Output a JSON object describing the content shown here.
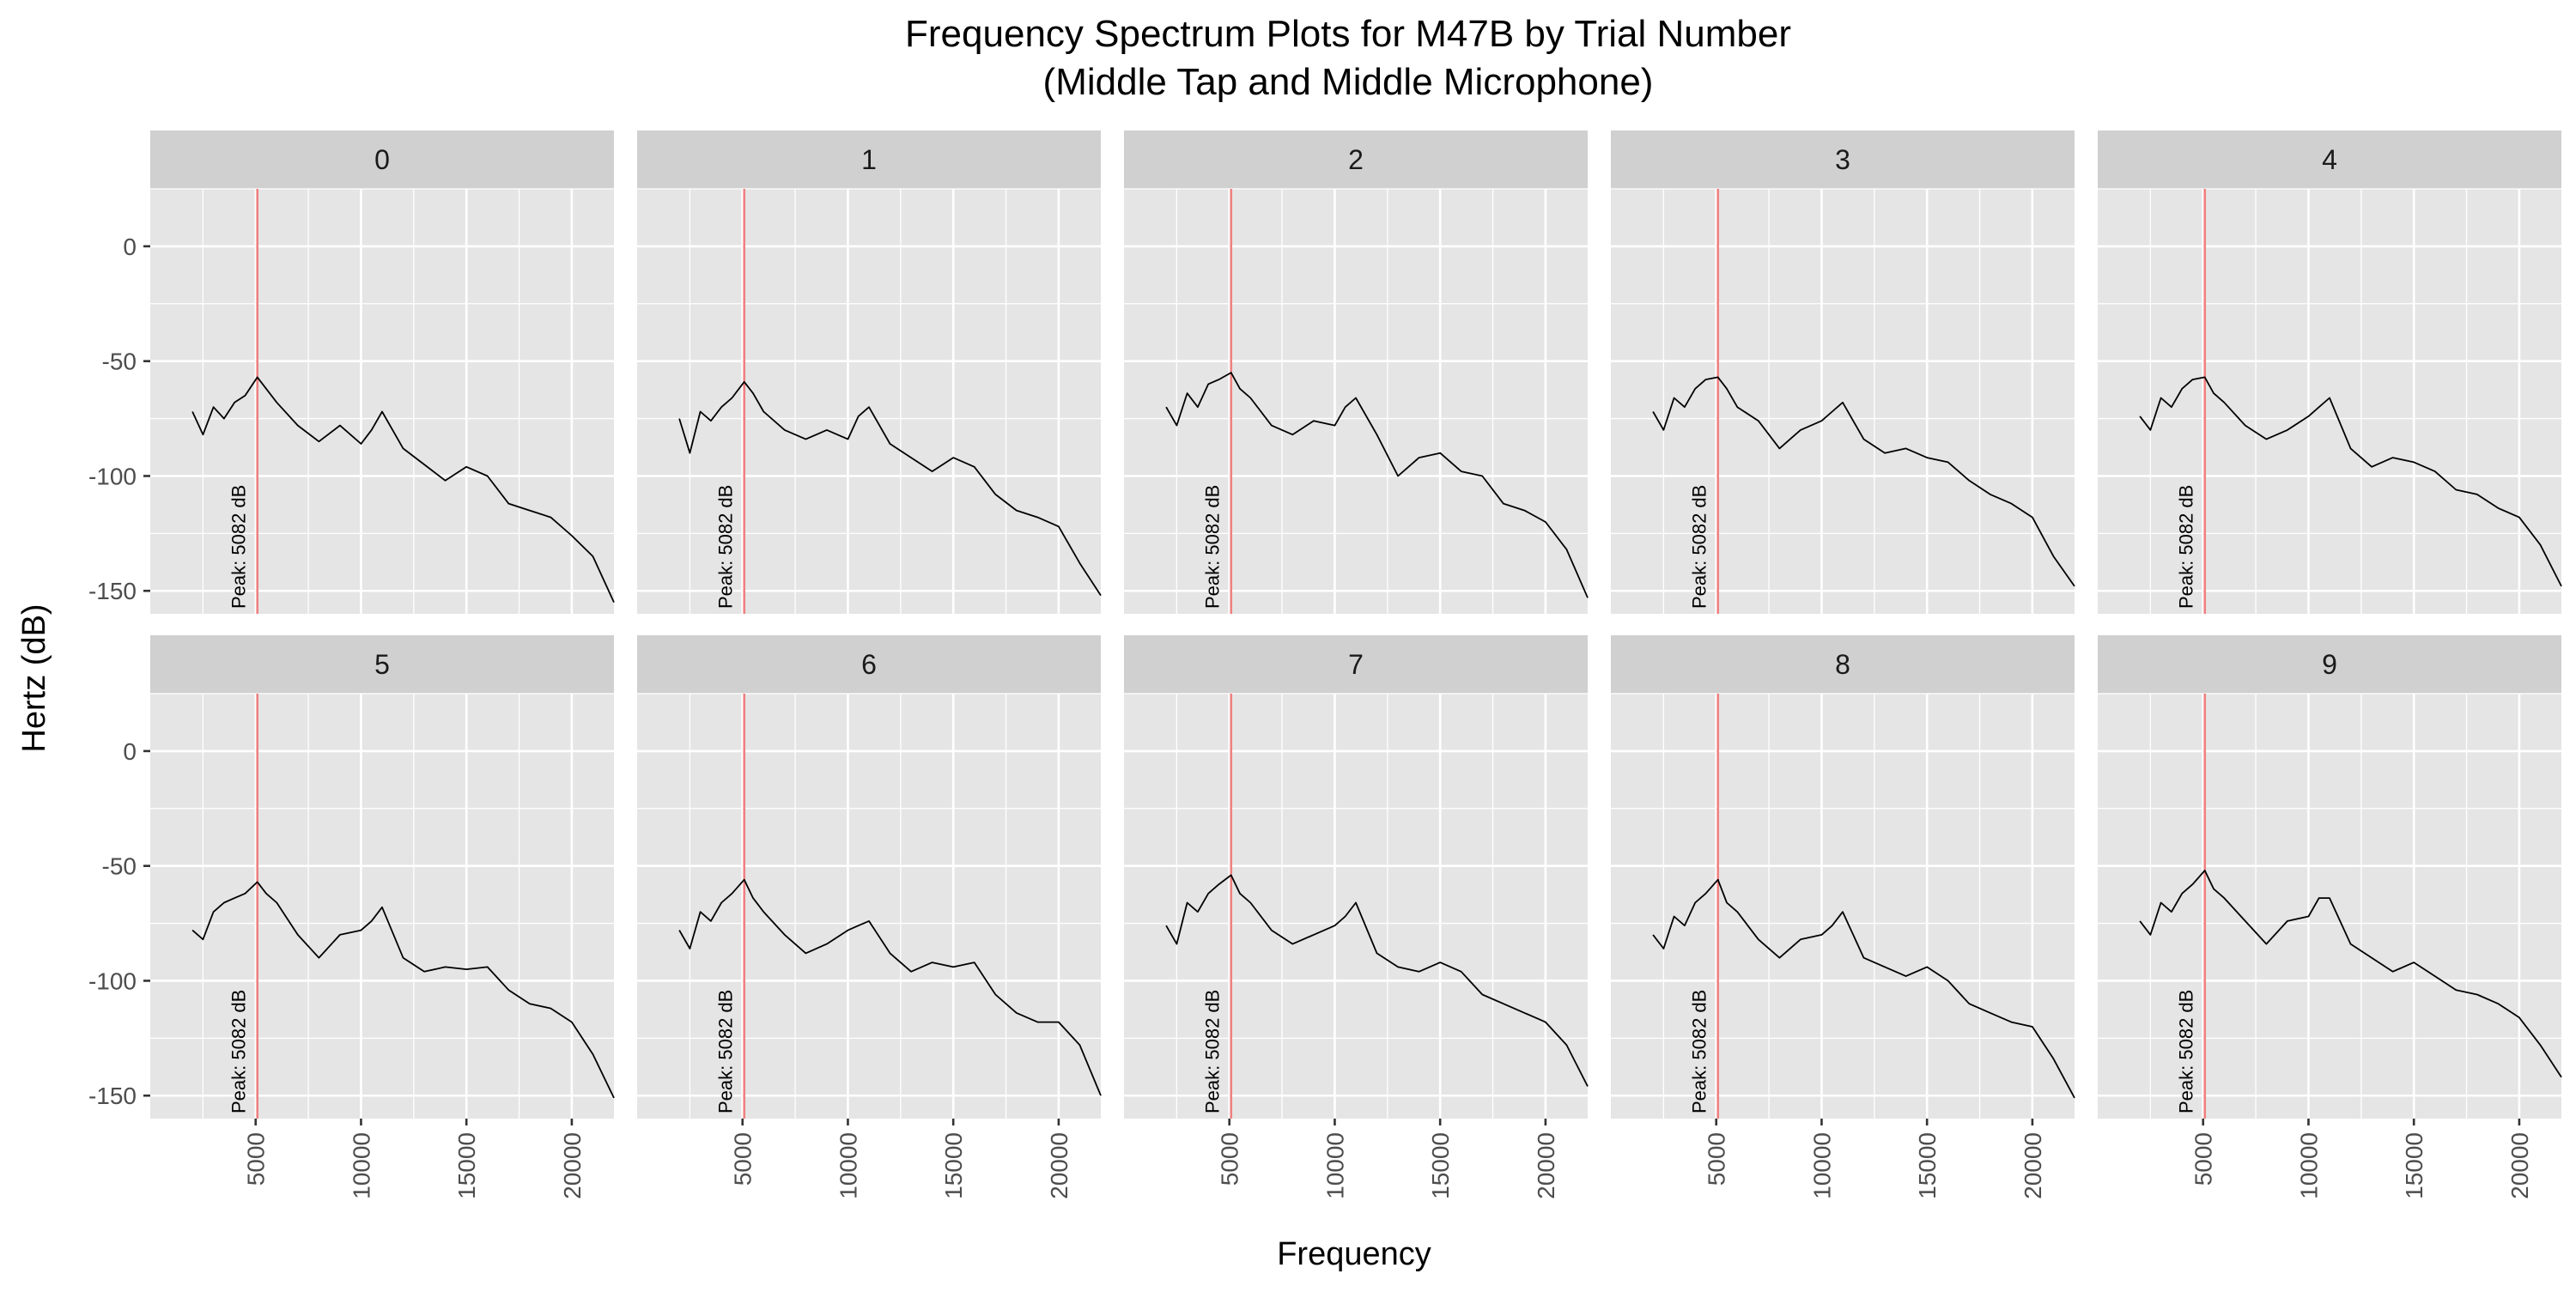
{
  "chart_data": {
    "type": "line",
    "title_line1": "Frequency Spectrum Plots for  M47B  by Trial Number",
    "title_line2": "(Middle Tap and Middle Microphone)",
    "xlabel": "Frequency",
    "ylabel": "Hertz (dB)",
    "xlim": [
      0,
      22000
    ],
    "ylim": [
      -160,
      25
    ],
    "x_ticks": [
      5000,
      10000,
      15000,
      20000
    ],
    "x_tick_labels": [
      "5000",
      "10000",
      "15000",
      "20000"
    ],
    "y_ticks": [
      0,
      -50,
      -100,
      -150
    ],
    "y_tick_labels": [
      "0",
      "-50",
      "-100",
      "-150"
    ],
    "grid": true,
    "legend": "none",
    "peak_frequency": 5082,
    "peak_label": "Peak:  5082 dB",
    "colors": {
      "panel_background": "#e5e5e5",
      "strip_background": "#d0d0d0",
      "grid": "#ffffff",
      "line": "#000000",
      "peak_line": "#f08080"
    },
    "panels": [
      {
        "label": "0",
        "x": [
          2000,
          2500,
          3000,
          3500,
          4000,
          4500,
          5082,
          5500,
          6000,
          7000,
          8000,
          9000,
          10000,
          10500,
          11000,
          12000,
          13000,
          14000,
          15000,
          16000,
          17000,
          18000,
          19000,
          20000,
          21000,
          22000
        ],
        "values": [
          -72,
          -82,
          -70,
          -75,
          -68,
          -65,
          -57,
          -62,
          -68,
          -78,
          -85,
          -78,
          -86,
          -80,
          -72,
          -88,
          -95,
          -102,
          -96,
          -100,
          -112,
          -115,
          -118,
          -126,
          -135,
          -155
        ]
      },
      {
        "label": "1",
        "x": [
          2000,
          2500,
          3000,
          3500,
          4000,
          4500,
          5082,
          5500,
          6000,
          7000,
          8000,
          9000,
          10000,
          10500,
          11000,
          12000,
          13000,
          14000,
          15000,
          16000,
          17000,
          18000,
          19000,
          20000,
          21000,
          22000
        ],
        "values": [
          -75,
          -90,
          -72,
          -76,
          -70,
          -66,
          -59,
          -64,
          -72,
          -80,
          -84,
          -80,
          -84,
          -74,
          -70,
          -86,
          -92,
          -98,
          -92,
          -96,
          -108,
          -115,
          -118,
          -122,
          -138,
          -152
        ]
      },
      {
        "label": "2",
        "x": [
          2000,
          2500,
          3000,
          3500,
          4000,
          4500,
          5082,
          5500,
          6000,
          7000,
          8000,
          9000,
          10000,
          10500,
          11000,
          12000,
          13000,
          14000,
          15000,
          16000,
          17000,
          18000,
          19000,
          20000,
          21000,
          22000
        ],
        "values": [
          -70,
          -78,
          -64,
          -70,
          -60,
          -58,
          -55,
          -62,
          -66,
          -78,
          -82,
          -76,
          -78,
          -70,
          -66,
          -82,
          -100,
          -92,
          -90,
          -98,
          -100,
          -112,
          -115,
          -120,
          -132,
          -153
        ]
      },
      {
        "label": "3",
        "x": [
          2000,
          2500,
          3000,
          3500,
          4000,
          4500,
          5082,
          5500,
          6000,
          7000,
          8000,
          9000,
          10000,
          10500,
          11000,
          12000,
          13000,
          14000,
          15000,
          16000,
          17000,
          18000,
          19000,
          20000,
          21000,
          22000
        ],
        "values": [
          -72,
          -80,
          -66,
          -70,
          -62,
          -58,
          -57,
          -62,
          -70,
          -76,
          -88,
          -80,
          -76,
          -72,
          -68,
          -84,
          -90,
          -88,
          -92,
          -94,
          -102,
          -108,
          -112,
          -118,
          -135,
          -148
        ]
      },
      {
        "label": "4",
        "x": [
          2000,
          2500,
          3000,
          3500,
          4000,
          4500,
          5082,
          5500,
          6000,
          7000,
          8000,
          9000,
          10000,
          10500,
          11000,
          12000,
          13000,
          14000,
          15000,
          16000,
          17000,
          18000,
          19000,
          20000,
          21000,
          22000
        ],
        "values": [
          -74,
          -80,
          -66,
          -70,
          -62,
          -58,
          -57,
          -64,
          -68,
          -78,
          -84,
          -80,
          -74,
          -70,
          -66,
          -88,
          -96,
          -92,
          -94,
          -98,
          -106,
          -108,
          -114,
          -118,
          -130,
          -148
        ]
      },
      {
        "label": "5",
        "x": [
          2000,
          2500,
          3000,
          3500,
          4000,
          4500,
          5082,
          5500,
          6000,
          7000,
          8000,
          9000,
          10000,
          10500,
          11000,
          12000,
          13000,
          14000,
          15000,
          16000,
          17000,
          18000,
          19000,
          20000,
          21000,
          22000
        ],
        "values": [
          -78,
          -82,
          -70,
          -66,
          -64,
          -62,
          -57,
          -62,
          -66,
          -80,
          -90,
          -80,
          -78,
          -74,
          -68,
          -90,
          -96,
          -94,
          -95,
          -94,
          -104,
          -110,
          -112,
          -118,
          -132,
          -151
        ]
      },
      {
        "label": "6",
        "x": [
          2000,
          2500,
          3000,
          3500,
          4000,
          4500,
          5082,
          5500,
          6000,
          7000,
          8000,
          9000,
          10000,
          10500,
          11000,
          12000,
          13000,
          14000,
          15000,
          16000,
          17000,
          18000,
          19000,
          20000,
          21000,
          22000
        ],
        "values": [
          -78,
          -86,
          -70,
          -74,
          -66,
          -62,
          -56,
          -64,
          -70,
          -80,
          -88,
          -84,
          -78,
          -76,
          -74,
          -88,
          -96,
          -92,
          -94,
          -92,
          -106,
          -114,
          -118,
          -118,
          -128,
          -150
        ]
      },
      {
        "label": "7",
        "x": [
          2000,
          2500,
          3000,
          3500,
          4000,
          4500,
          5082,
          5500,
          6000,
          7000,
          8000,
          9000,
          10000,
          10500,
          11000,
          12000,
          13000,
          14000,
          15000,
          16000,
          17000,
          18000,
          19000,
          20000,
          21000,
          22000
        ],
        "values": [
          -76,
          -84,
          -66,
          -70,
          -62,
          -58,
          -54,
          -62,
          -66,
          -78,
          -84,
          -80,
          -76,
          -72,
          -66,
          -88,
          -94,
          -96,
          -92,
          -96,
          -106,
          -110,
          -114,
          -118,
          -128,
          -146
        ]
      },
      {
        "label": "8",
        "x": [
          2000,
          2500,
          3000,
          3500,
          4000,
          4500,
          5082,
          5500,
          6000,
          7000,
          8000,
          9000,
          10000,
          10500,
          11000,
          12000,
          13000,
          14000,
          15000,
          16000,
          17000,
          18000,
          19000,
          20000,
          21000,
          22000
        ],
        "values": [
          -80,
          -86,
          -72,
          -76,
          -66,
          -62,
          -56,
          -66,
          -70,
          -82,
          -90,
          -82,
          -80,
          -76,
          -70,
          -90,
          -94,
          -98,
          -94,
          -100,
          -110,
          -114,
          -118,
          -120,
          -134,
          -151
        ]
      },
      {
        "label": "9",
        "x": [
          2000,
          2500,
          3000,
          3500,
          4000,
          4500,
          5082,
          5500,
          6000,
          7000,
          8000,
          9000,
          10000,
          10500,
          11000,
          12000,
          13000,
          14000,
          15000,
          16000,
          17000,
          18000,
          19000,
          20000,
          21000,
          22000
        ],
        "values": [
          -74,
          -80,
          -66,
          -70,
          -62,
          -58,
          -52,
          -60,
          -64,
          -74,
          -84,
          -74,
          -72,
          -64,
          -64,
          -84,
          -90,
          -96,
          -92,
          -98,
          -104,
          -106,
          -110,
          -116,
          -128,
          -142
        ]
      }
    ]
  }
}
